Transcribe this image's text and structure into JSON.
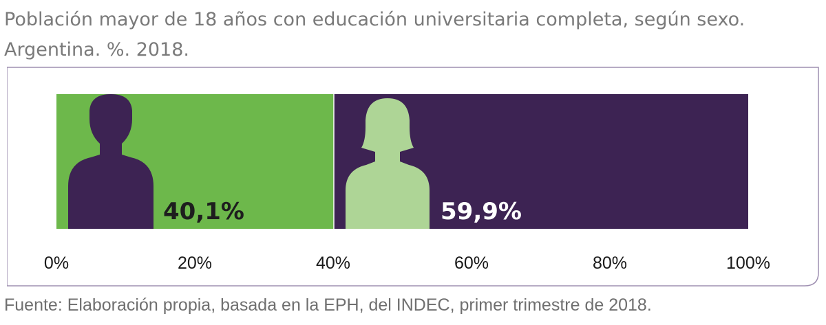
{
  "title_line1": "Población mayor de 18 años con educación universitaria completa, según sexo.",
  "title_line2": "Argentina. %. 2018.",
  "source": "Fuente: Elaboración propia, basada en la EPH, del INDEC, primer trimestre de 2018.",
  "colors": {
    "male_segment": "#6db84b",
    "female_segment": "#3d2353",
    "male_icon": "#3d2353",
    "female_icon": "#aed596",
    "frame": "#9e8fb1",
    "axis_text": "#1a1a1a"
  },
  "chart_data": {
    "type": "bar",
    "orientation": "horizontal-stacked",
    "title": "Población mayor de 18 años con educación universitaria completa, según sexo. Argentina. %. 2018.",
    "xlim": [
      0,
      100
    ],
    "x_ticks": [
      "0%",
      "20%",
      "40%",
      "60%",
      "80%",
      "100%"
    ],
    "series": [
      {
        "value": 40.1,
        "label": "40,1%",
        "icon": "male-silhouette-icon"
      },
      {
        "value": 59.9,
        "label": "59,9%",
        "icon": "female-silhouette-icon"
      }
    ]
  }
}
